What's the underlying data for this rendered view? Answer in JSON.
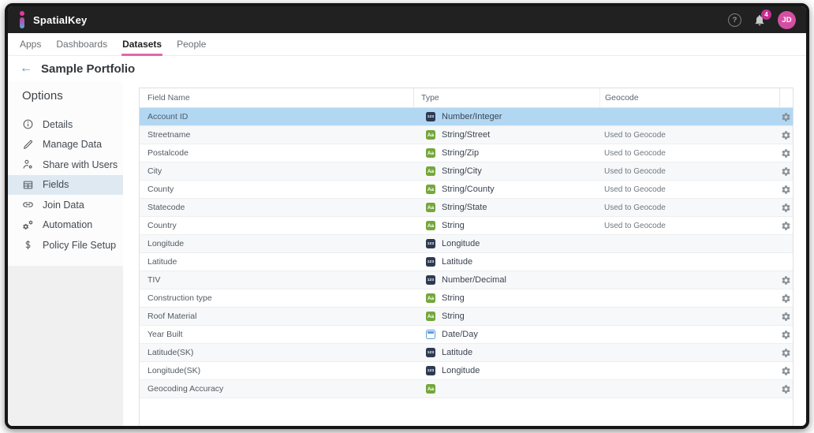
{
  "topbar": {
    "brand": "SpatialKey",
    "help_glyph": "?",
    "notification_count": "4",
    "avatar_initials": "JD"
  },
  "nav": {
    "items": [
      {
        "label": "Apps",
        "active": false
      },
      {
        "label": "Dashboards",
        "active": false
      },
      {
        "label": "Datasets",
        "active": true
      },
      {
        "label": "People",
        "active": false
      }
    ]
  },
  "page": {
    "title": "Sample Portfolio",
    "back_glyph": "←"
  },
  "sidebar": {
    "heading": "Options",
    "items": [
      {
        "label": "Details",
        "icon": "info-icon",
        "selected": false
      },
      {
        "label": "Manage Data",
        "icon": "pencil-icon",
        "selected": false
      },
      {
        "label": "Share with Users",
        "icon": "user-gear-icon",
        "selected": false
      },
      {
        "label": "Fields",
        "icon": "table-icon",
        "selected": true
      },
      {
        "label": "Join Data",
        "icon": "link-icon",
        "selected": false
      },
      {
        "label": "Automation",
        "icon": "gears-icon",
        "selected": false
      },
      {
        "label": "Policy File Setup",
        "icon": "dollar-icon",
        "selected": false
      }
    ]
  },
  "table": {
    "columns": [
      "Field Name",
      "Type",
      "Geocode"
    ],
    "type_badges": {
      "number": "123",
      "string": "Aa",
      "date": ""
    },
    "rows": [
      {
        "field": "Account ID",
        "type": "Number/Integer",
        "type_icon": "number-icon",
        "geocode": "",
        "has_gear": true,
        "selected": true
      },
      {
        "field": "Streetname",
        "type": "String/Street",
        "type_icon": "string-icon",
        "geocode": "Used to Geocode",
        "has_gear": true,
        "selected": false
      },
      {
        "field": "Postalcode",
        "type": "String/Zip",
        "type_icon": "string-icon",
        "geocode": "Used to Geocode",
        "has_gear": true,
        "selected": false
      },
      {
        "field": "City",
        "type": "String/City",
        "type_icon": "string-icon",
        "geocode": "Used to Geocode",
        "has_gear": true,
        "selected": false
      },
      {
        "field": "County",
        "type": "String/County",
        "type_icon": "string-icon",
        "geocode": "Used to Geocode",
        "has_gear": true,
        "selected": false
      },
      {
        "field": "Statecode",
        "type": "String/State",
        "type_icon": "string-icon",
        "geocode": "Used to Geocode",
        "has_gear": true,
        "selected": false
      },
      {
        "field": "Country",
        "type": "String",
        "type_icon": "string-icon",
        "geocode": "Used to Geocode",
        "has_gear": true,
        "selected": false
      },
      {
        "field": "Longitude",
        "type": "Longitude",
        "type_icon": "number-icon",
        "geocode": "",
        "has_gear": false,
        "selected": false
      },
      {
        "field": "Latitude",
        "type": "Latitude",
        "type_icon": "number-icon",
        "geocode": "",
        "has_gear": false,
        "selected": false
      },
      {
        "field": "TIV",
        "type": "Number/Decimal",
        "type_icon": "number-icon",
        "geocode": "",
        "has_gear": true,
        "selected": false
      },
      {
        "field": "Construction type",
        "type": "String",
        "type_icon": "string-icon",
        "geocode": "",
        "has_gear": true,
        "selected": false
      },
      {
        "field": "Roof Material",
        "type": "String",
        "type_icon": "string-icon",
        "geocode": "",
        "has_gear": true,
        "selected": false
      },
      {
        "field": "Year Built",
        "type": "Date/Day",
        "type_icon": "date-icon",
        "geocode": "",
        "has_gear": true,
        "selected": false
      },
      {
        "field": "Latitude(SK)",
        "type": "Latitude",
        "type_icon": "number-icon",
        "geocode": "",
        "has_gear": true,
        "selected": false
      },
      {
        "field": "Longitude(SK)",
        "type": "Longitude",
        "type_icon": "number-icon",
        "geocode": "",
        "has_gear": true,
        "selected": false
      },
      {
        "field": "Geocoding Accuracy",
        "type": "",
        "type_icon": "string-icon",
        "geocode": "",
        "has_gear": true,
        "selected": false
      }
    ]
  },
  "colors": {
    "topbar_bg": "#212121",
    "accent_pink": "#e168ac",
    "badge_pink": "#c52f90",
    "avatar_pink": "#d44fa2",
    "selected_row_blue": "#b2d7f3",
    "sidebar_selected": "#dfe9f2",
    "number_badge_bg": "#2d3a52",
    "string_badge_bg": "#74a73c",
    "date_badge_border": "#5c9fd6",
    "back_arrow_blue": "#4c8fd9"
  }
}
